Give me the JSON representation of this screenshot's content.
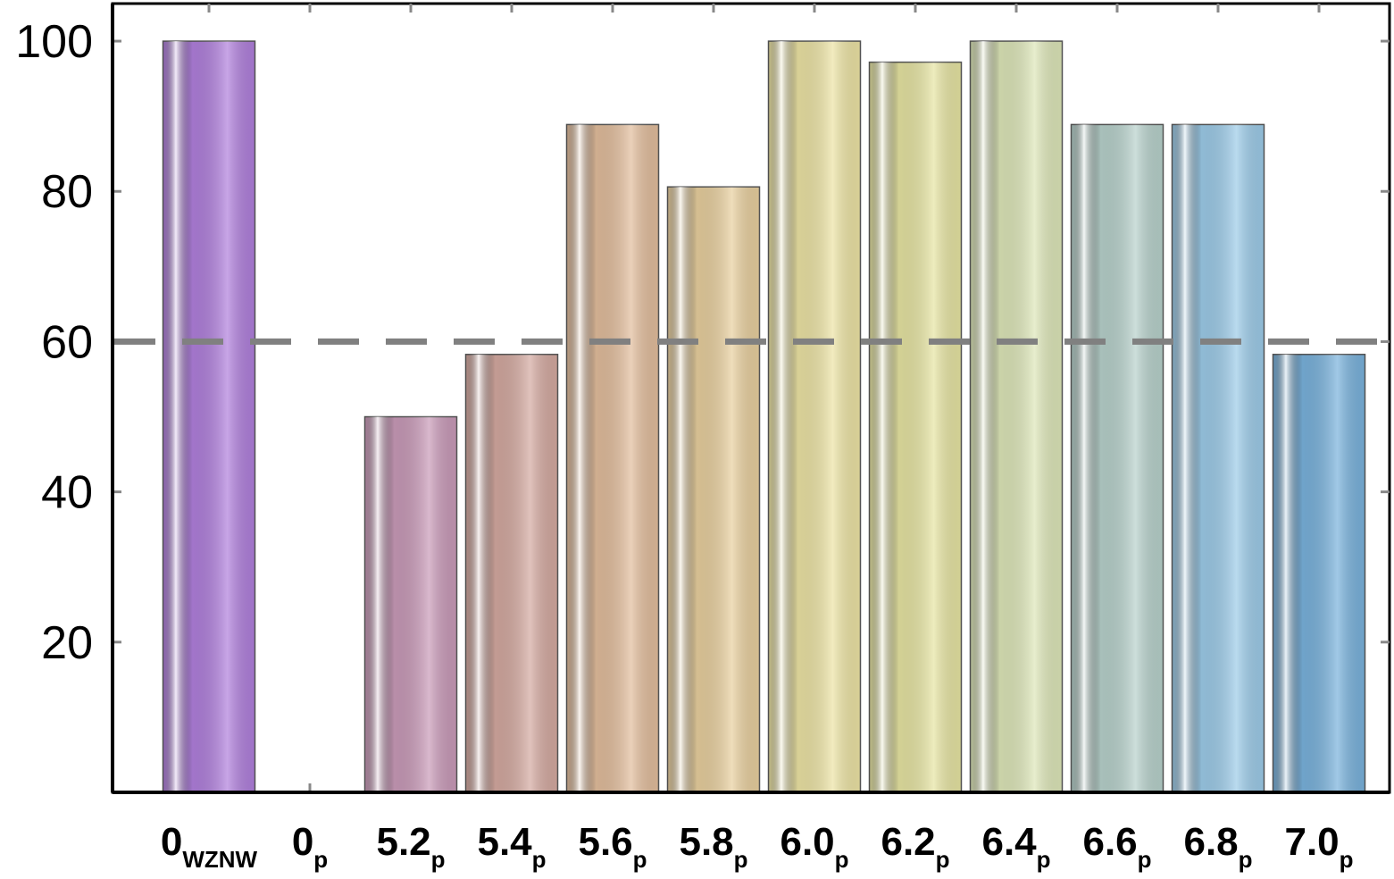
{
  "chart_data": {
    "type": "bar",
    "categories": [
      "0",
      "0",
      "5.2",
      "5.4",
      "5.6",
      "5.8",
      "6.0",
      "6.2",
      "6.4",
      "6.6",
      "6.8",
      "7.0"
    ],
    "category_subscripts": [
      "WZNW",
      "p",
      "p",
      "p",
      "p",
      "p",
      "p",
      "p",
      "p",
      "p",
      "p",
      "p"
    ],
    "values": [
      100,
      0,
      50,
      58.3,
      88.9,
      80.6,
      100,
      97.2,
      100,
      88.9,
      88.9,
      58.3
    ],
    "colors": [
      "#b07fdc",
      "#c8a0d8",
      "#c99ab8",
      "#d4a9a0",
      "#e2bd9c",
      "#e8cf9e",
      "#ece3a4",
      "#e6e4a2",
      "#dde6b8",
      "#b7d1cb",
      "#9ccbe8",
      "#79b2dc"
    ],
    "ylim": [
      0,
      105
    ],
    "yticks": [
      20,
      40,
      60,
      80,
      100
    ],
    "reference_line": 60,
    "reference_color": "#808080"
  }
}
